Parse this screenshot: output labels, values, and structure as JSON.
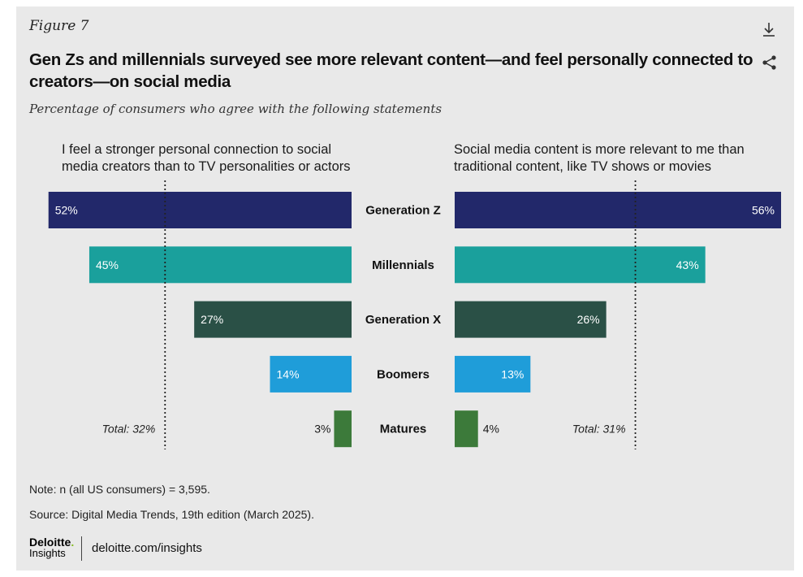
{
  "header": {
    "figure_label": "Figure 7",
    "title": "Gen Zs and millennials surveyed see more relevant content—and feel personally connected to creators—on social media",
    "subtitle": "Percentage of consumers who agree with the following statements",
    "icons": [
      "download-icon",
      "share-icon"
    ]
  },
  "chart_data": {
    "type": "bar",
    "orientation": "horizontal",
    "categories": [
      "Generation Z",
      "Millennials",
      "Generation X",
      "Boomers",
      "Matures"
    ],
    "colors": [
      "#22286a",
      "#1aa09c",
      "#2a5046",
      "#1f9dd9",
      "#3c7a3a"
    ],
    "xlim": [
      0,
      56
    ],
    "panels": [
      {
        "title": "I feel a stronger personal connection to social media creators than to TV personalities or actors",
        "side": "left",
        "values": [
          52,
          45,
          27,
          14,
          3
        ],
        "labels": [
          "52%",
          "45%",
          "27%",
          "14%",
          "3%"
        ],
        "total_value": 32,
        "total_label": "Total: 32%"
      },
      {
        "title": "Social media content is more relevant to me than traditional content, like TV shows or movies",
        "side": "right",
        "values": [
          56,
          43,
          26,
          13,
          4
        ],
        "labels": [
          "56%",
          "43%",
          "26%",
          "13%",
          "4%"
        ],
        "total_value": 31,
        "total_label": "Total: 31%"
      }
    ]
  },
  "footer": {
    "note": "Note: n (all US consumers) = 3,595.",
    "source": "Source: Digital Media Trends, 19th edition (March 2025).",
    "logo_main": "Deloitte",
    "logo_dot": ".",
    "logo_sub": "Insights",
    "site": "deloitte.com/insights"
  }
}
